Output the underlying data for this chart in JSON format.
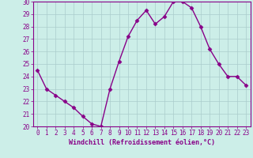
{
  "x": [
    0,
    1,
    2,
    3,
    4,
    5,
    6,
    7,
    8,
    9,
    10,
    11,
    12,
    13,
    14,
    15,
    16,
    17,
    18,
    19,
    20,
    21,
    22,
    23
  ],
  "y": [
    24.5,
    23.0,
    22.5,
    22.0,
    21.5,
    20.8,
    20.2,
    20.0,
    23.0,
    25.2,
    27.2,
    28.5,
    29.3,
    28.2,
    28.8,
    30.0,
    30.0,
    29.5,
    28.0,
    26.2,
    25.0,
    24.0,
    24.0,
    23.3
  ],
  "line_color": "#880088",
  "marker": "D",
  "marker_size": 2.5,
  "bg_color": "#cceee8",
  "grid_color": "#aacccc",
  "xlabel": "Windchill (Refroidissement éolien,°C)",
  "xlabel_color": "#880088",
  "tick_color": "#880088",
  "ylim": [
    20,
    30
  ],
  "xlim": [
    -0.5,
    23.5
  ],
  "yticks": [
    20,
    21,
    22,
    23,
    24,
    25,
    26,
    27,
    28,
    29,
    30
  ],
  "xticks": [
    0,
    1,
    2,
    3,
    4,
    5,
    6,
    7,
    8,
    9,
    10,
    11,
    12,
    13,
    14,
    15,
    16,
    17,
    18,
    19,
    20,
    21,
    22,
    23
  ],
  "spine_color": "#880088",
  "tick_fontsize": 5.5,
  "xlabel_fontsize": 6.0,
  "linewidth": 1.0
}
